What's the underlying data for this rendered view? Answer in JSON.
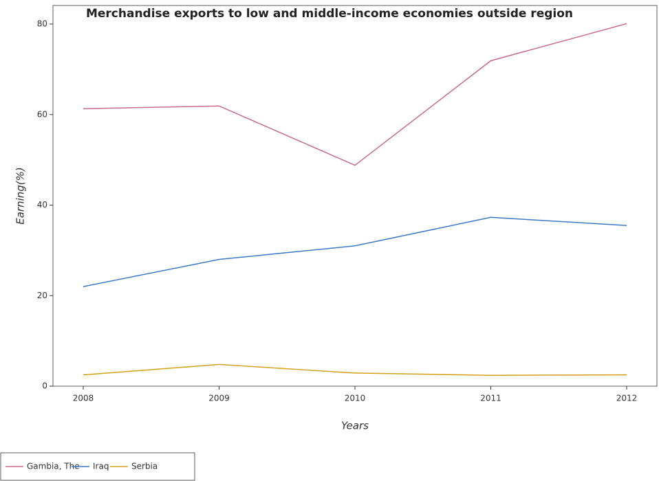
{
  "chart_data": {
    "type": "line",
    "title": "Merchandise exports to low and middle-income economies outside region",
    "x_label": "Years",
    "y_label": "Earning(%)",
    "categories": [
      "2008",
      "2009",
      "2010",
      "2011",
      "2012"
    ],
    "series": [
      {
        "name": "Gambia, The",
        "color": "#c8698f",
        "values": [
          61.3,
          61.9,
          48.8,
          71.9,
          80.1
        ]
      },
      {
        "name": "Iraq",
        "color": "#3b78c8",
        "values": [
          22.0,
          28.0,
          31.0,
          37.3,
          35.5
        ]
      },
      {
        "name": "Serbia",
        "color": "#d4a017",
        "values": [
          2.5,
          4.8,
          2.9,
          2.4,
          2.5
        ]
      }
    ],
    "ylim": [
      0,
      84.1
    ],
    "yticks": [
      0,
      20,
      40,
      60,
      80
    ],
    "grid": false
  }
}
